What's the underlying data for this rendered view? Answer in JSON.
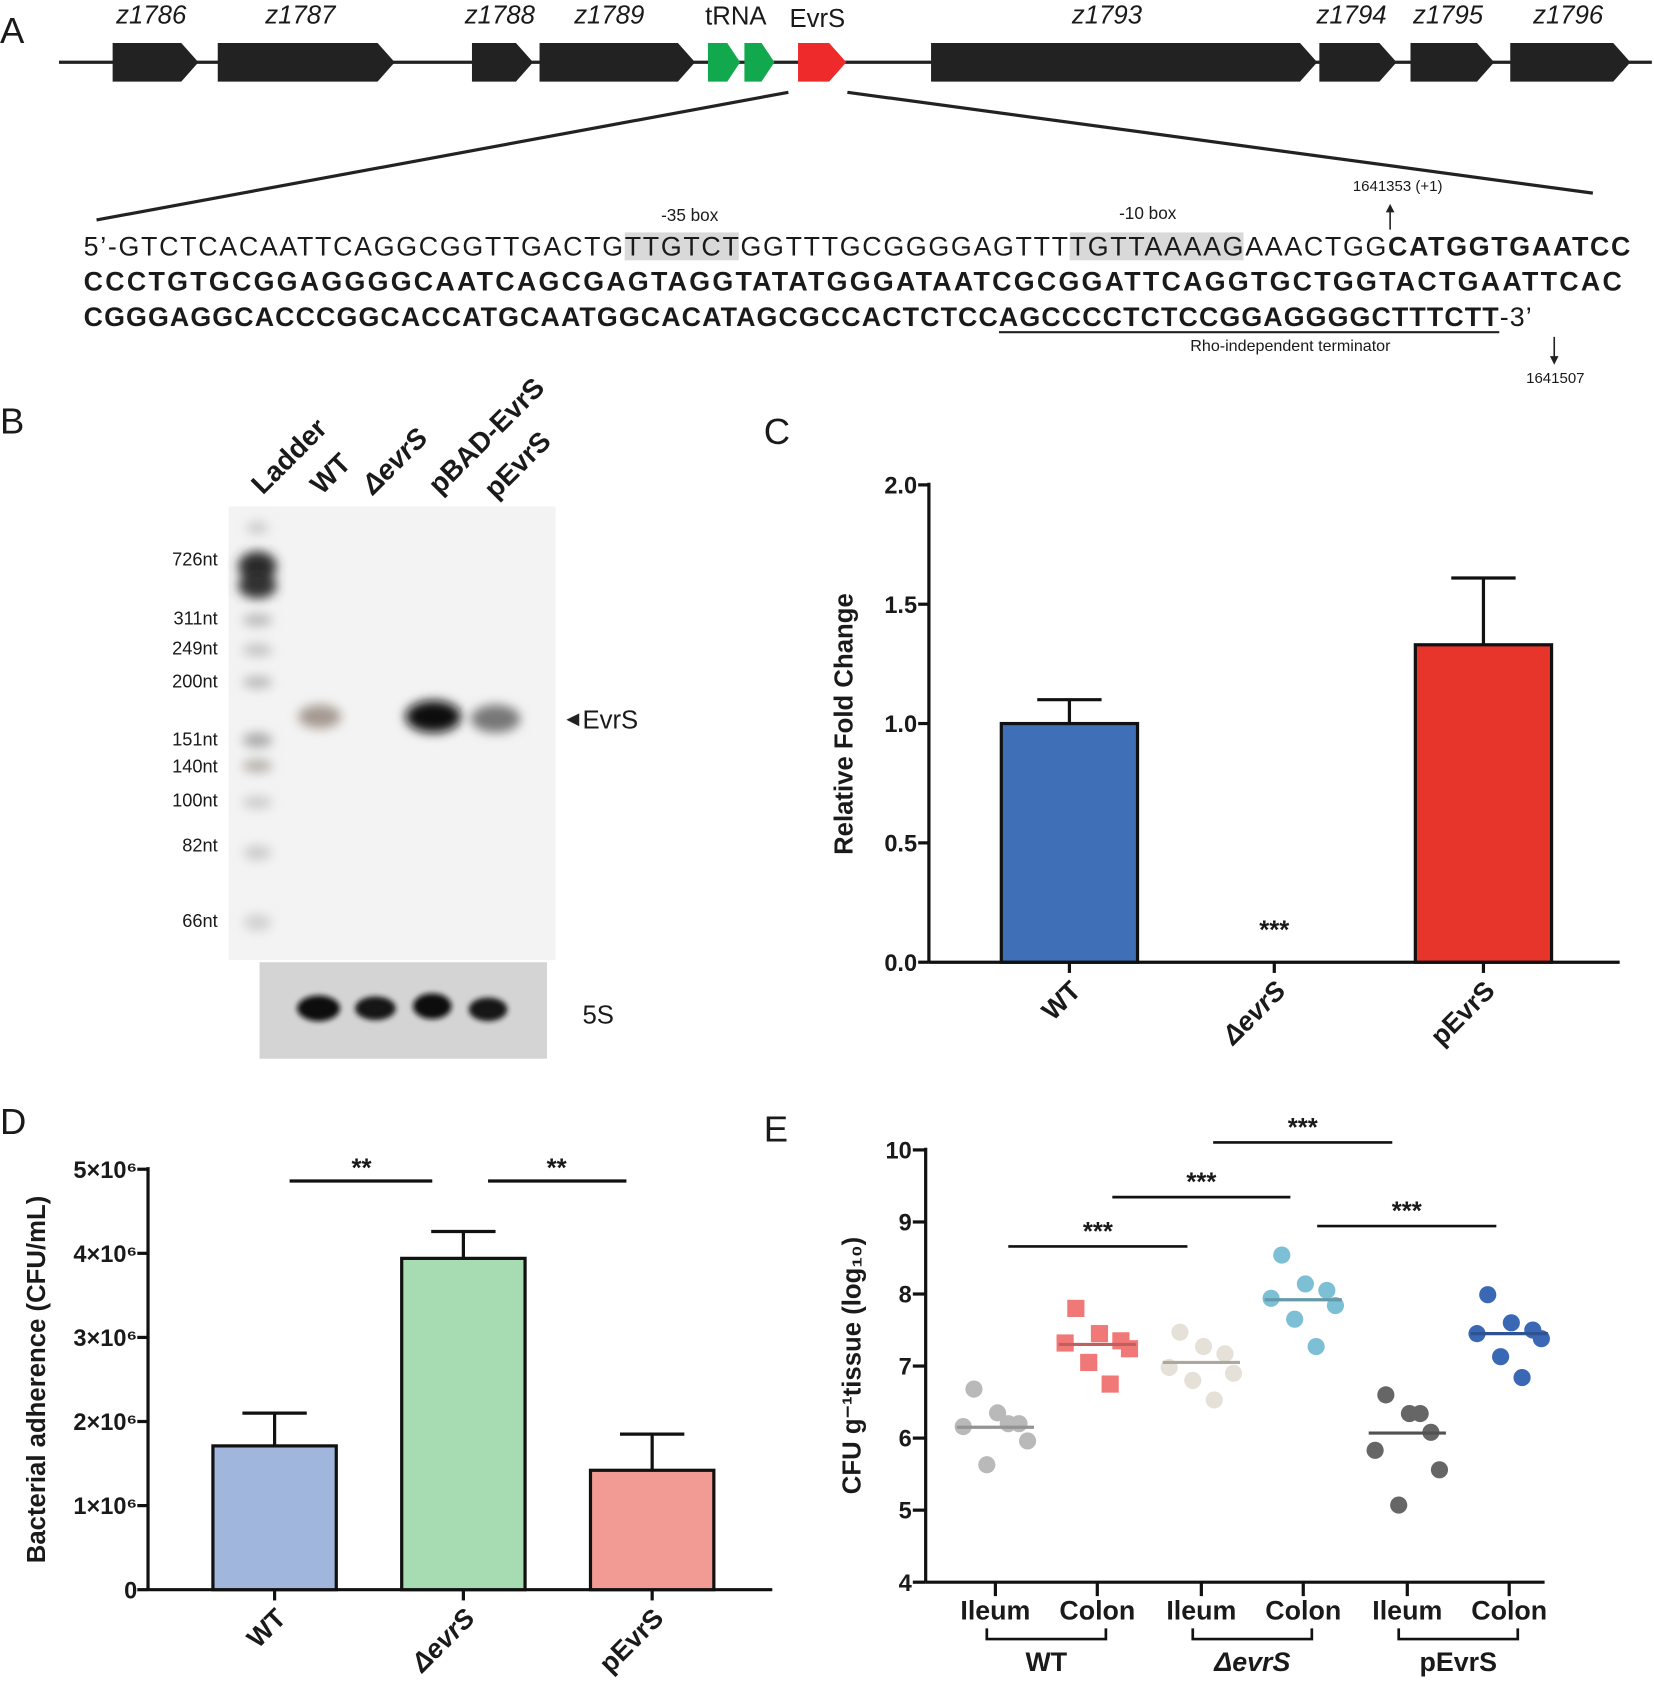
{
  "panel_a": {
    "label": "A",
    "genes": [
      "z1786",
      "z1787",
      "z1788",
      "z1789",
      "z1793",
      "z1794",
      "z1795",
      "z1796"
    ],
    "trna": "tRNA",
    "evrs": "EvrS",
    "box_35": "-35 box",
    "box_10": "-10 box",
    "start_site": "1641353 (+1)",
    "end_site": "1641507",
    "terminator": "Rho-independent terminator",
    "sequence": [
      [
        {
          "text": "5’-GTCTCACAATTCAGGCGGTTGACTG"
        },
        {
          "text": "TTGTCT",
          "style": "highlight"
        },
        {
          "text": "GGTTTGCGGGGAGTTT"
        },
        {
          "text": "TGTTAAAAG",
          "style": "highlight"
        },
        {
          "text": "AAACTGG"
        },
        {
          "text": "CATGGTGAATCC",
          "style": "bold"
        }
      ],
      [
        {
          "text": "CCCTGTGCGGAGGGGCAATCAGCGAGTAGGTATATGGGATAATCGCGGATTCAGGTGCTGGTACTGAATTCAC",
          "style": "bold"
        }
      ],
      [
        {
          "text": "CGGGAGGCACCCGGCACCATGCAATGGCACATAGCGCCACTCTCC",
          "style": "bold"
        },
        {
          "text": "AGCCCCTCTCCGGAGGGGCTTTCTT",
          "style": "bold-underline"
        },
        {
          "text": "-3’"
        }
      ]
    ]
  },
  "panel_b": {
    "label": "B",
    "lanes": [
      "Ladder",
      "WT",
      "ΔevrS",
      "pBAD-EvrS",
      "pEvrS"
    ],
    "sizes": [
      "726nt",
      "311nt",
      "249nt",
      "200nt",
      "151nt",
      "140nt",
      "100nt",
      "82nt",
      "66nt"
    ],
    "band_label": "EvrS",
    "loading_label": "5S"
  },
  "chart_data": [
    {
      "panel": "C",
      "type": "bar",
      "y_label": "Relative Fold Change",
      "categories": [
        "WT",
        "ΔevrS",
        "pEvrS"
      ],
      "values": [
        1.0,
        0,
        1.33
      ],
      "errors": [
        0.1,
        null,
        0.28
      ],
      "colors": [
        "#3f6fb6",
        "#3f6fb6",
        "#e8352b"
      ],
      "ylim": [
        0,
        2
      ],
      "yticks": [
        {
          "value": 0,
          "label": "0.0"
        },
        {
          "value": 0.5,
          "label": "0.5"
        },
        {
          "value": 1,
          "label": "1.0"
        },
        {
          "value": 1.5,
          "label": "1.5"
        },
        {
          "value": 2,
          "label": "2.0"
        }
      ],
      "annotations": [
        "***"
      ]
    },
    {
      "panel": "D",
      "type": "bar",
      "y_label": "Bacterial adherence (CFU/mL)",
      "categories": [
        "WT",
        "ΔevrS",
        "pEvrS"
      ],
      "values": [
        1710000,
        3940000,
        1420000
      ],
      "errors": [
        390000,
        320000,
        430000
      ],
      "colors": [
        "#a0b6dc",
        "#a7dbb1",
        "#f29b94"
      ],
      "ylim": [
        0,
        5000000
      ],
      "yticks": [
        0,
        {
          "value": 1000000,
          "label": "1×10⁶"
        },
        {
          "value": 2000000,
          "label": "2×10⁶"
        },
        {
          "value": 3000000,
          "label": "3×10⁶"
        },
        {
          "value": 4000000,
          "label": "4×10⁶"
        },
        {
          "value": 5000000,
          "label": "5×10⁶"
        }
      ],
      "annotations": [
        "**",
        "**"
      ]
    },
    {
      "panel": "E",
      "type": "scatter",
      "y_label": "CFU g⁻¹tissue (log₁₀)",
      "ylim": [
        4,
        10
      ],
      "yticks": [
        4,
        5,
        6,
        7,
        8,
        9,
        10
      ],
      "groups": [
        {
          "name": "WT",
          "series": [
            {
              "name": "Ileum",
              "color": "#b9b9b9",
              "marker": "circle",
              "values": [
                6.68,
                6.35,
                6.2,
                6.16,
                5.96,
                5.63,
                6.2
              ],
              "median": 6.15
            },
            {
              "name": "Colon",
              "color": "#f07876",
              "marker": "square",
              "values": [
                7.8,
                7.45,
                7.35,
                7.32,
                7.24,
                7.05,
                6.75
              ],
              "median": 7.3
            }
          ]
        },
        {
          "name": "ΔevrS",
          "series": [
            {
              "name": "Ileum",
              "color": "#e6e1d8",
              "marker": "circle",
              "values": [
                7.47,
                7.27,
                7.17,
                6.98,
                6.9,
                6.8,
                6.53
              ],
              "median": 7.05
            },
            {
              "name": "Colon",
              "color": "#7dbfd5",
              "marker": "circle",
              "values": [
                8.54,
                8.14,
                8.05,
                7.94,
                7.84,
                7.65,
                7.27
              ],
              "median": 7.92
            }
          ]
        },
        {
          "name": "pEvrS",
          "series": [
            {
              "name": "Ileum",
              "color": "#666666",
              "marker": "circle",
              "values": [
                6.6,
                6.34,
                6.08,
                5.83,
                5.56,
                5.07,
                6.34
              ],
              "median": 6.07
            },
            {
              "name": "Colon",
              "color": "#3a68b4",
              "marker": "circle",
              "values": [
                7.99,
                7.6,
                7.5,
                7.45,
                7.38,
                7.13,
                6.84
              ],
              "median": 7.45
            }
          ]
        }
      ],
      "annotations": [
        "***",
        "***",
        "***",
        "***"
      ]
    }
  ]
}
